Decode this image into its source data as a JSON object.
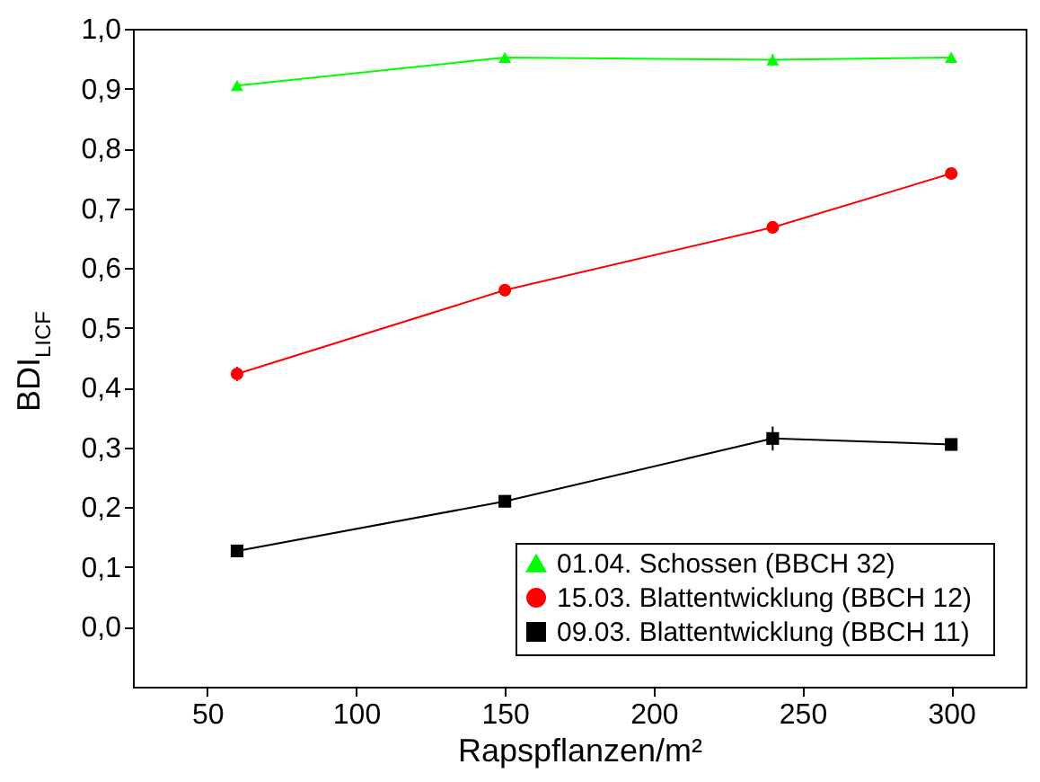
{
  "chart_data": {
    "type": "line",
    "xlabel": "Rapspflanzen/m²",
    "ylabel": "BDI$_{LICF}$",
    "x": [
      60,
      150,
      240,
      300
    ],
    "series": [
      {
        "name": "01.04. Schossen             (BBCH 32)",
        "color": "#00ff00",
        "marker": "triangle",
        "values": [
          0.905,
          0.952,
          0.948,
          0.952
        ],
        "errors": [
          0.008,
          0.006,
          0.01,
          0.008
        ]
      },
      {
        "name": "15.03. Blattentwicklung (BBCH 12)",
        "color": "#ff0000",
        "marker": "circle",
        "values": [
          0.423,
          0.563,
          0.668,
          0.758
        ],
        "errors": [
          0.012,
          0.005,
          0.005,
          0.005
        ]
      },
      {
        "name": "09.03. Blattentwicklung (BBCH 11)",
        "color": "#000000",
        "marker": "square",
        "values": [
          0.127,
          0.21,
          0.315,
          0.305
        ],
        "errors": [
          0.004,
          0.01,
          0.02,
          0.005
        ]
      }
    ],
    "xlim": [
      25,
      325
    ],
    "xticks": [
      50,
      100,
      150,
      200,
      250,
      300
    ],
    "ylim": [
      -0.1,
      1.0
    ],
    "yticks": [
      {
        "value": 0.0,
        "label": "0,0"
      },
      {
        "value": 0.1,
        "label": "0,1"
      },
      {
        "value": 0.2,
        "label": "0,2"
      },
      {
        "value": 0.3,
        "label": "0,3"
      },
      {
        "value": 0.4,
        "label": "0,4"
      },
      {
        "value": 0.5,
        "label": "0,5"
      },
      {
        "value": 0.6,
        "label": "0,6"
      },
      {
        "value": 0.7,
        "label": "0,7"
      },
      {
        "value": 0.8,
        "label": "0,8"
      },
      {
        "value": 0.9,
        "label": "0,9"
      },
      {
        "value": 1.0,
        "label": "1,0"
      }
    ],
    "grid": false,
    "legend": "bottom right",
    "line_style": "solid"
  }
}
